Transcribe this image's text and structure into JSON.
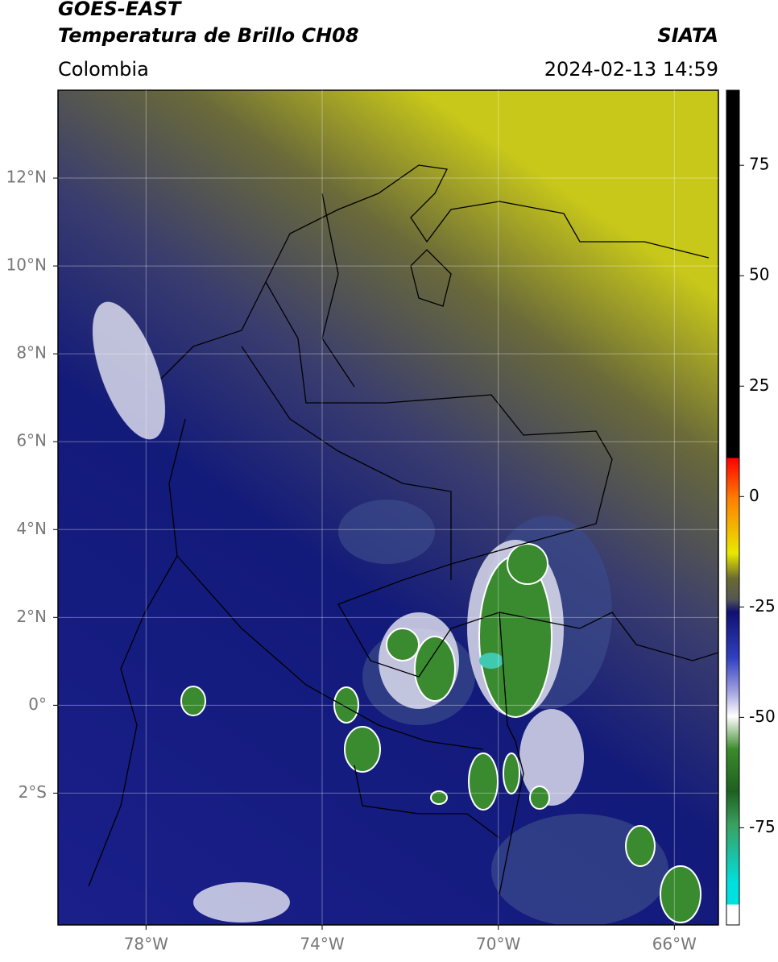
{
  "header": {
    "title": "GOES-EAST",
    "subtitle": "Temperatura de Brillo CH08",
    "source": "SIATA",
    "region": "Colombia",
    "timestamp": "2024-02-13 14:59"
  },
  "map": {
    "xlim": [
      -80,
      -65
    ],
    "ylim": [
      -5,
      14
    ],
    "xticks": [
      {
        "value": -78,
        "label": "78°W"
      },
      {
        "value": -74,
        "label": "74°W"
      },
      {
        "value": -70,
        "label": "70°W"
      },
      {
        "value": -66,
        "label": "66°W"
      }
    ],
    "yticks": [
      {
        "value": 12,
        "label": "12°N"
      },
      {
        "value": 10,
        "label": "10°N"
      },
      {
        "value": 8,
        "label": "8°N"
      },
      {
        "value": 6,
        "label": "6°N"
      },
      {
        "value": 4,
        "label": "4°N"
      },
      {
        "value": 2,
        "label": "2°N"
      },
      {
        "value": 0,
        "label": "0°"
      },
      {
        "value": -2,
        "label": "2°S"
      }
    ],
    "grid": true
  },
  "colorbar": {
    "lim": [
      -97,
      92
    ],
    "ticks": [
      75,
      50,
      25,
      0,
      -25,
      -50,
      -75
    ]
  }
}
